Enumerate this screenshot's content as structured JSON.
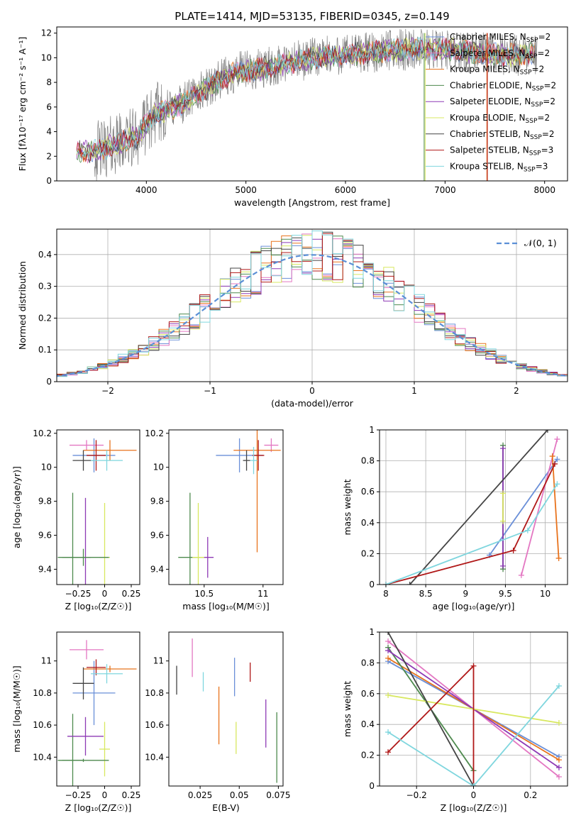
{
  "figure": {
    "title": "PLATE=1414, MJD=53135, FIBERID=0345, z=0.149",
    "models": [
      {
        "name": "Chabrier MILES",
        "nssp": "2",
        "color": "#6a8fd8"
      },
      {
        "name": "Salpeter MILES",
        "nssp": "2",
        "color": "#e377c2"
      },
      {
        "name": "Kroupa MILES",
        "nssp": "2",
        "color": "#e8731d"
      },
      {
        "name": "Chabrier ELODIE",
        "nssp": "2",
        "color": "#4e8a4e"
      },
      {
        "name": "Salpeter ELODIE",
        "nssp": "2",
        "color": "#8e3ab5"
      },
      {
        "name": "Kroupa ELODIE",
        "nssp": "2",
        "color": "#d8e860"
      },
      {
        "name": "Chabrier STELIB",
        "nssp": "2",
        "color": "#444444"
      },
      {
        "name": "Salpeter STELIB",
        "nssp": "3",
        "color": "#b01818"
      },
      {
        "name": "Kroupa STELIB",
        "nssp": "3",
        "color": "#7fd6de"
      }
    ],
    "data_color": "#808080"
  },
  "chart_data": [
    {
      "id": "spectrum",
      "type": "line",
      "title": "PLATE=1414, MJD=53135, FIBERID=0345, z=0.149",
      "xlabel": "wavelength [Angstrom, rest frame]",
      "ylabel": "Flux [fλ10⁻¹⁷ erg cm⁻² s⁻¹ A⁻¹]",
      "xlim": [
        3100,
        8230
      ],
      "ylim": [
        0,
        12.5
      ],
      "xticks": [
        4000,
        5000,
        6000,
        7000,
        8000
      ],
      "yticks": [
        0,
        2,
        4,
        6,
        8,
        10,
        12
      ],
      "grid": false,
      "legend": "upper-right",
      "continuum": {
        "x": [
          3300,
          3500,
          3700,
          3900,
          4100,
          4300,
          4500,
          4700,
          4900,
          5100,
          5300,
          5500,
          5700,
          5900,
          6100,
          6300,
          6500,
          6700,
          6900,
          7100,
          7300,
          7500,
          7700,
          7900
        ],
        "y": [
          2.4,
          2.4,
          3.0,
          3.6,
          5.5,
          6.0,
          7.0,
          8.0,
          8.8,
          9.0,
          9.3,
          9.7,
          10.0,
          10.2,
          10.3,
          10.5,
          10.6,
          10.7,
          10.7,
          10.6,
          10.4,
          10.3,
          10.2,
          10.3
        ]
      }
    },
    {
      "id": "residuals",
      "type": "line",
      "xlabel": "(data-model)/error",
      "ylabel": "Normed distribution",
      "xlim": [
        -2.5,
        2.5
      ],
      "ylim": [
        0,
        0.48
      ],
      "xticks": [
        -2,
        -1,
        0,
        1,
        2
      ],
      "yticks": [
        0.0,
        0.1,
        0.2,
        0.3,
        0.4
      ],
      "grid": true,
      "legend": "upper-right",
      "legend_label": "𝒩(0, 1)",
      "reference": "gaussian"
    },
    {
      "id": "age_vs_z",
      "type": "scatter",
      "xlabel": "Z [log₁₀(Z/Z☉)]",
      "ylabel": "age  [log₁₀(age/yr)]",
      "xlim": [
        -0.45,
        0.33
      ],
      "ylim": [
        9.31,
        10.22
      ],
      "xticks": [
        -0.25,
        0.0,
        0.25
      ],
      "yticks": [
        9.4,
        9.6,
        9.8,
        10.0,
        10.2
      ],
      "points": [
        {
          "x": -0.1,
          "y": 10.07,
          "xerr": 0.2,
          "yerr": 0.1,
          "series": 0
        },
        {
          "x": -0.17,
          "y": 10.13,
          "xerr": 0.16,
          "yerr": 0.03,
          "series": 1
        },
        {
          "x": 0.05,
          "y": 10.1,
          "xerr": 0.25,
          "yerr": 0.06,
          "series": 2
        },
        {
          "x": -0.3,
          "y": 9.47,
          "xerr": 0.1,
          "yerr": 0.38,
          "series": 3
        },
        {
          "x": -0.18,
          "y": 9.47,
          "xerr": 0.05,
          "yerr": 0.35,
          "series": 4
        },
        {
          "x": 0.0,
          "y": 9.47,
          "xerr": 0.05,
          "yerr": 0.32,
          "series": 5
        },
        {
          "x": -0.2,
          "y": 10.04,
          "xerr": 0.1,
          "yerr": 0.06,
          "series": 6
        },
        {
          "x": -0.08,
          "y": 10.07,
          "xerr": 0.09,
          "yerr": 0.09,
          "series": 7
        },
        {
          "x": 0.02,
          "y": 10.04,
          "xerr": 0.15,
          "yerr": 0.06,
          "series": 8
        },
        {
          "x": -0.2,
          "y": 9.47,
          "xerr": 0.24,
          "yerr": 0.05,
          "series": 3
        }
      ]
    },
    {
      "id": "age_vs_mass",
      "type": "scatter",
      "xlabel": "mass [log₁₀(M/M☉)]",
      "ylabel": "",
      "xlim": [
        10.2,
        11.17
      ],
      "ylim": [
        9.31,
        10.22
      ],
      "xticks": [
        10.5,
        11.0
      ],
      "yticks": [
        9.4,
        9.6,
        9.8,
        10.0,
        10.2
      ],
      "points": [
        {
          "x": 10.8,
          "y": 10.07,
          "xerr": 0.2,
          "yerr": 0.1,
          "series": 0
        },
        {
          "x": 11.07,
          "y": 10.13,
          "xerr": 0.06,
          "yerr": 0.04,
          "series": 1
        },
        {
          "x": 10.95,
          "y": 10.1,
          "xerr": 0.2,
          "yerr": 0.6,
          "series": 2
        },
        {
          "x": 10.38,
          "y": 9.47,
          "xerr": 0.1,
          "yerr": 0.38,
          "series": 3
        },
        {
          "x": 10.53,
          "y": 9.47,
          "xerr": 0.05,
          "yerr": 0.12,
          "series": 4
        },
        {
          "x": 10.45,
          "y": 9.47,
          "xerr": 0.05,
          "yerr": 0.32,
          "series": 5
        },
        {
          "x": 10.86,
          "y": 10.04,
          "xerr": 0.03,
          "yerr": 0.06,
          "series": 6
        },
        {
          "x": 10.96,
          "y": 10.07,
          "xerr": 0.05,
          "yerr": 0.09,
          "series": 7
        },
        {
          "x": 10.92,
          "y": 10.04,
          "xerr": 0.03,
          "yerr": 0.08,
          "series": 8
        }
      ]
    },
    {
      "id": "weight_vs_age",
      "type": "line",
      "xlabel": "age  [log₁₀(age/yr)]",
      "ylabel": "mass weight",
      "xlim": [
        7.92,
        10.28
      ],
      "ylim": [
        0,
        1.0
      ],
      "xticks": [
        8.0,
        8.5,
        9.0,
        9.5,
        10.0
      ],
      "yticks": [
        0.0,
        0.2,
        0.4,
        0.6,
        0.8,
        1.0
      ],
      "grid": true,
      "series": [
        {
          "model": 0,
          "x": [
            9.3,
            10.15
          ],
          "y": [
            0.19,
            0.81
          ]
        },
        {
          "model": 1,
          "x": [
            9.7,
            10.15
          ],
          "y": [
            0.06,
            0.94
          ]
        },
        {
          "model": 2,
          "x": [
            10.09,
            10.17
          ],
          "y": [
            0.83,
            0.17
          ]
        },
        {
          "model": 3,
          "x": [
            9.47,
            9.47
          ],
          "y": [
            0.1,
            0.9
          ]
        },
        {
          "model": 4,
          "x": [
            9.47,
            9.47
          ],
          "y": [
            0.12,
            0.88
          ]
        },
        {
          "model": 5,
          "x": [
            9.47,
            9.47
          ],
          "y": [
            0.41,
            0.59
          ]
        },
        {
          "model": 6,
          "x": [
            8.3,
            10.03
          ],
          "y": [
            0.0,
            1.0
          ]
        },
        {
          "model": 7,
          "x": [
            8.0,
            9.6,
            10.12
          ],
          "y": [
            0.0,
            0.22,
            0.78
          ]
        },
        {
          "model": 8,
          "x": [
            8.0,
            9.78,
            10.15
          ],
          "y": [
            0.0,
            0.35,
            0.65
          ]
        }
      ]
    },
    {
      "id": "mass_vs_z",
      "type": "scatter",
      "xlabel": "Z [log₁₀(Z/Z☉)]",
      "ylabel": "mass [log₁₀(M/M☉)]",
      "xlim": [
        -0.45,
        0.33
      ],
      "ylim": [
        10.22,
        11.18
      ],
      "xticks": [
        -0.25,
        0.0,
        0.25
      ],
      "yticks": [
        10.4,
        10.6,
        10.8,
        11.0
      ],
      "points": [
        {
          "x": -0.1,
          "y": 10.8,
          "xerr": 0.2,
          "yerr": 0.2,
          "series": 0
        },
        {
          "x": -0.17,
          "y": 11.07,
          "xerr": 0.16,
          "yerr": 0.06,
          "series": 1
        },
        {
          "x": 0.05,
          "y": 10.95,
          "xerr": 0.25,
          "yerr": 0.02,
          "series": 2
        },
        {
          "x": -0.3,
          "y": 10.38,
          "xerr": 0.1,
          "yerr": 0.29,
          "series": 3
        },
        {
          "x": -0.18,
          "y": 10.53,
          "xerr": 0.17,
          "yerr": 0.12,
          "series": 4
        },
        {
          "x": 0.0,
          "y": 10.45,
          "xerr": 0.05,
          "yerr": 0.17,
          "series": 5
        },
        {
          "x": -0.2,
          "y": 10.86,
          "xerr": 0.1,
          "yerr": 0.1,
          "series": 6
        },
        {
          "x": -0.08,
          "y": 10.96,
          "xerr": 0.09,
          "yerr": 0.05,
          "series": 7
        },
        {
          "x": 0.02,
          "y": 10.92,
          "xerr": 0.15,
          "yerr": 0.06,
          "series": 8
        },
        {
          "x": -0.2,
          "y": 10.38,
          "xerr": 0.24,
          "yerr": 0.01,
          "series": 3
        }
      ]
    },
    {
      "id": "mass_vs_ebv",
      "type": "scatter",
      "xlabel": "E(B-V)",
      "ylabel": "",
      "xlim": [
        0.005,
        0.078
      ],
      "ylim": [
        10.22,
        11.18
      ],
      "xticks": [
        0.025,
        0.05,
        0.075
      ],
      "yticks": [
        10.4,
        10.6,
        10.8,
        11.0
      ],
      "points": [
        {
          "x": 0.047,
          "y": 10.9,
          "yerr": 0.12,
          "series": 0
        },
        {
          "x": 0.02,
          "y": 11.02,
          "yerr": 0.12,
          "series": 1
        },
        {
          "x": 0.037,
          "y": 10.66,
          "yerr": 0.18,
          "series": 2
        },
        {
          "x": 0.074,
          "y": 10.46,
          "yerr": 0.22,
          "series": 3
        },
        {
          "x": 0.067,
          "y": 10.61,
          "yerr": 0.15,
          "series": 4
        },
        {
          "x": 0.048,
          "y": 10.52,
          "yerr": 0.1,
          "series": 5
        },
        {
          "x": 0.01,
          "y": 10.88,
          "yerr": 0.09,
          "series": 6
        },
        {
          "x": 0.057,
          "y": 10.93,
          "yerr": 0.06,
          "series": 7
        },
        {
          "x": 0.027,
          "y": 10.87,
          "yerr": 0.06,
          "series": 8
        }
      ]
    },
    {
      "id": "weight_vs_z",
      "type": "line",
      "xlabel": "Z [log₁₀(Z/Z☉)]",
      "ylabel": "mass weight",
      "xlim": [
        -0.33,
        0.33
      ],
      "ylim": [
        0,
        1.0
      ],
      "xticks": [
        -0.2,
        0.0,
        0.2
      ],
      "yticks": [
        0.0,
        0.2,
        0.4,
        0.6,
        0.8,
        1.0
      ],
      "grid": true,
      "series": [
        {
          "model": 0,
          "x": [
            -0.3,
            0.3
          ],
          "y": [
            0.81,
            0.19
          ]
        },
        {
          "model": 1,
          "x": [
            -0.3,
            0.3
          ],
          "y": [
            0.94,
            0.06
          ]
        },
        {
          "model": 2,
          "x": [
            -0.3,
            0.3
          ],
          "y": [
            0.83,
            0.17
          ]
        },
        {
          "model": 3,
          "x": [
            -0.3,
            0.0
          ],
          "y": [
            0.9,
            0.1
          ]
        },
        {
          "model": 4,
          "x": [
            -0.3,
            0.3
          ],
          "y": [
            0.88,
            0.12
          ]
        },
        {
          "model": 5,
          "x": [
            -0.3,
            0.3
          ],
          "y": [
            0.59,
            0.41
          ]
        },
        {
          "model": 6,
          "x": [
            -0.3,
            0.0
          ],
          "y": [
            1.0,
            0.0
          ]
        },
        {
          "model": 7,
          "x": [
            -0.3,
            0.0,
            0.0
          ],
          "y": [
            0.22,
            0.78,
            0.0
          ]
        },
        {
          "model": 8,
          "x": [
            -0.3,
            0.0,
            0.3
          ],
          "y": [
            0.35,
            0.0,
            0.65
          ]
        }
      ]
    }
  ]
}
